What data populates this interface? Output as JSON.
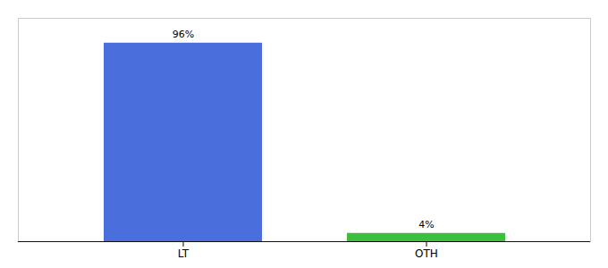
{
  "chart_data": {
    "type": "bar",
    "categories": [
      "LT",
      "OTH"
    ],
    "values": [
      96,
      4
    ],
    "value_labels": [
      "96%",
      "4%"
    ],
    "colors": [
      "#4a6fdc",
      "#3dbf3d"
    ],
    "ylim": [
      0,
      108
    ],
    "data_labels": true,
    "tick_labels": "x",
    "grid": false
  }
}
